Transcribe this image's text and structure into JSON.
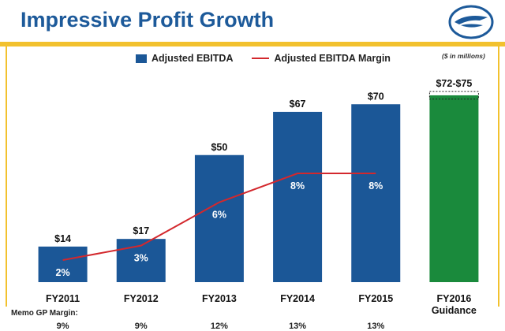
{
  "title": "Impressive Profit Growth",
  "units_note": "($ in millions)",
  "colors": {
    "title": "#1d5a9a",
    "bar": "#1b5797",
    "guidance_bar": "#1a8a3c",
    "margin_line": "#d3282d",
    "accent_rule": "#f2c12e"
  },
  "logo_icon": "stylized-bird-logo-icon",
  "chart_data": {
    "type": "bar",
    "categories": [
      "FY2011",
      "FY2012",
      "FY2013",
      "FY2014",
      "FY2015",
      "FY2016\nGuidance"
    ],
    "series": [
      {
        "name": "Adjusted EBITDA",
        "type": "bar",
        "values": [
          14,
          17,
          50,
          67,
          70,
          73.5
        ],
        "value_labels": [
          "$14",
          "$17",
          "$50",
          "$67",
          "$70",
          "$72-$75"
        ],
        "guidance_range": [
          72,
          75
        ]
      },
      {
        "name": "Adjusted EBITDA Margin",
        "type": "line",
        "values": [
          2,
          3,
          6,
          8,
          8,
          null
        ],
        "value_labels": [
          "2%",
          "3%",
          "6%",
          "8%",
          "8%",
          ""
        ]
      }
    ],
    "ylim": [
      0,
      80
    ],
    "legend_position": "top-center",
    "grid": false
  },
  "memo": {
    "label": "Memo GP Margin:",
    "values": [
      "9%",
      "9%",
      "12%",
      "13%",
      "13%"
    ]
  }
}
